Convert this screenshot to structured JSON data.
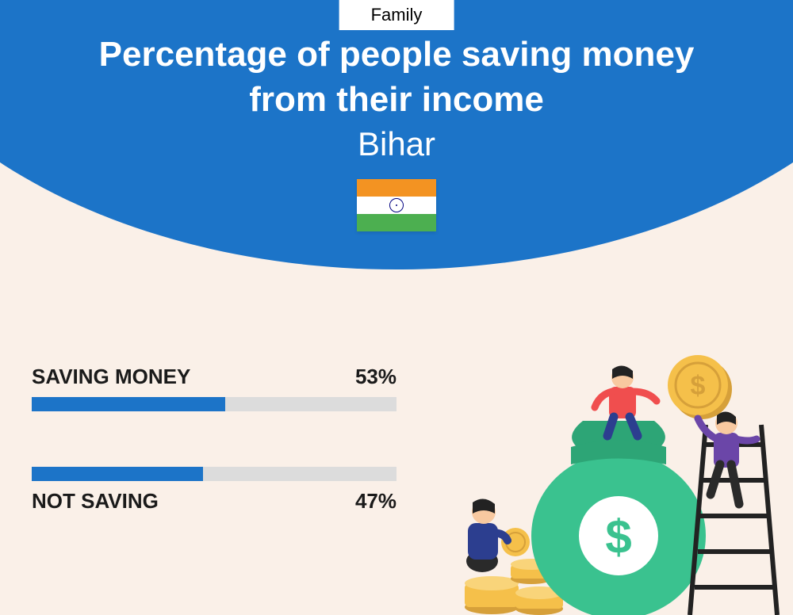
{
  "category": "Family",
  "title_line1": "Percentage of people saving money",
  "title_line2": "from their income",
  "region": "Bihar",
  "colors": {
    "header_bg": "#1c74c8",
    "page_bg": "#faf0e8",
    "bar_fill": "#1c74c8",
    "bar_track": "#dcdcdc",
    "text_light": "#ffffff",
    "text_dark": "#1a1a1a",
    "flag_saffron": "#f39322",
    "flag_white": "#ffffff",
    "flag_green": "#4caf50"
  },
  "bars": [
    {
      "label": "SAVING MONEY",
      "value": 53,
      "display": "53%",
      "label_position": "top"
    },
    {
      "label": "NOT SAVING",
      "value": 47,
      "display": "47%",
      "label_position": "bottom"
    }
  ],
  "illustration": {
    "bag_color": "#3ac28f",
    "bag_shadow": "#2da576",
    "coin_color": "#f5c04a",
    "coin_shadow": "#d6a03a",
    "ladder_color": "#222222",
    "p1_top": "#f04e4e",
    "p1_bottom": "#2c3e8f",
    "p2_top": "#6b46a8",
    "p2_bottom": "#2a2a2a",
    "p3_top": "#2c3e8f",
    "p3_bottom": "#2a2a2a",
    "skin": "#f8c9a0",
    "hair": "#222222"
  }
}
